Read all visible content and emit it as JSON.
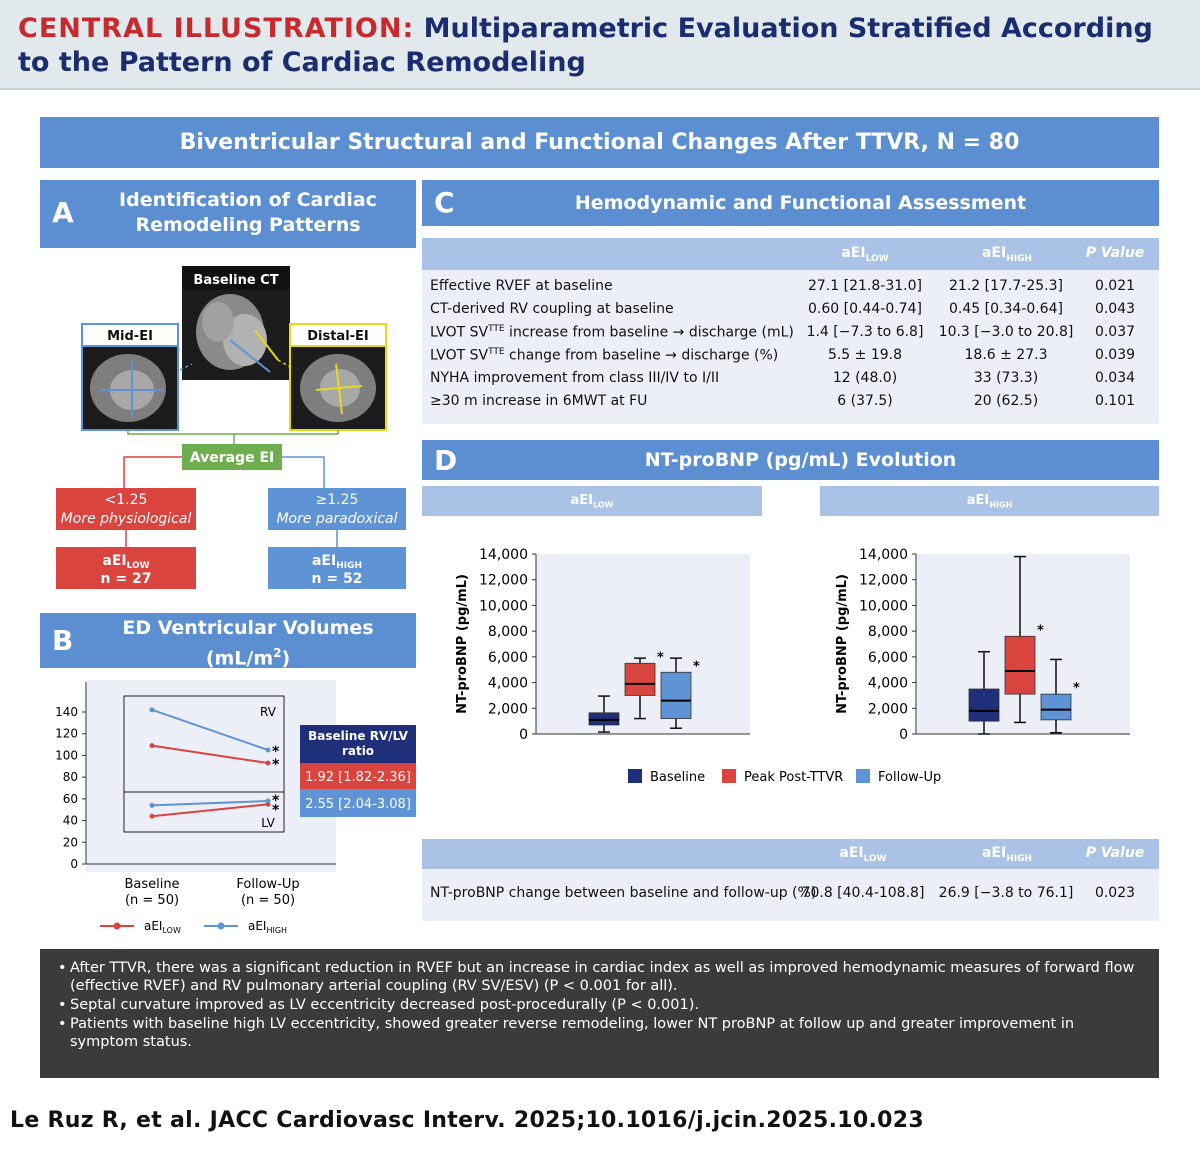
{
  "header": {
    "label": "CENTRAL ILLUSTRATION:",
    "title": "Multiparametric Evaluation Stratified According to the Pattern of Cardiac Remodeling"
  },
  "main_banner": "Biventricular Structural and Functional Changes After TTVR, N = 80",
  "panel_a": {
    "letter": "A",
    "title_line1": "Identification of Cardiac",
    "title_line2": "Remodeling Patterns",
    "ct_labels": {
      "baseline": "Baseline CT",
      "mid": "Mid-EI",
      "distal": "Distal-EI"
    },
    "average": "Average EI",
    "low_box": {
      "cut": "<1.25",
      "desc": "More physiological"
    },
    "high_box": {
      "cut": "≥1.25",
      "desc": "More paradoxical"
    },
    "low_group": {
      "name": "aEI",
      "sub": "LOW",
      "n": "n = 27"
    },
    "high_group": {
      "name": "aEI",
      "sub": "HIGH",
      "n": "n = 52"
    }
  },
  "panel_b": {
    "letter": "B",
    "title_line1": "ED Ventricular Volumes",
    "title_line2": "(mL/m",
    "title_sup": "2",
    "title_end": ")",
    "ratio_header_line1": "Baseline RV/LV",
    "ratio_header_line2": "ratio",
    "ratio_low": "1.92 [1.82-2.36]",
    "ratio_high": "2.55 [2.04-3.08]",
    "legend_low": {
      "name": "aEI",
      "sub": "LOW"
    },
    "legend_high": {
      "name": "aEI",
      "sub": "HIGH"
    }
  },
  "panel_c": {
    "letter": "C",
    "title": "Hemodynamic and Functional Assessment",
    "col_low": {
      "name": "aEI",
      "sub": "LOW"
    },
    "col_high": {
      "name": "aEI",
      "sub": "HIGH"
    },
    "col_p": "P Value",
    "rows": [
      {
        "label": "Effective RVEF at baseline",
        "low": "27.1 [21.8-31.0]",
        "high": "21.2 [17.7-25.3]",
        "p": "0.021"
      },
      {
        "label": "CT-derived RV coupling at baseline",
        "low": "0.60 [0.44-0.74]",
        "high": "0.45 [0.34-0.64]",
        "p": "0.043"
      },
      {
        "label_a": "LVOT SV",
        "label_sup": "TTE",
        "label_b": " increase from baseline → discharge (mL)",
        "low": "1.4 [−7.3 to 6.8]",
        "high": "10.3 [−3.0 to 20.8]",
        "p": "0.037"
      },
      {
        "label_a": "LVOT SV",
        "label_sup": "TTE",
        "label_b": " change from baseline → discharge (%)",
        "low": "5.5 ± 19.8",
        "high": "18.6 ± 27.3",
        "p": "0.039"
      },
      {
        "label": "NYHA improvement from class III/IV to I/II",
        "low": "12 (48.0)",
        "high": "33 (73.3)",
        "p": "0.034"
      },
      {
        "label": "≥30 m increase in 6MWT at FU",
        "low": "6 (37.5)",
        "high": "20 (62.5)",
        "p": "0.101"
      }
    ]
  },
  "panel_d": {
    "letter": "D",
    "title": "NT-proBNP (pg/mL) Evolution",
    "group_low": {
      "name": "aEI",
      "sub": "LOW"
    },
    "group_high": {
      "name": "aEI",
      "sub": "HIGH"
    },
    "legend": [
      "Baseline",
      "Peak Post-TTVR",
      "Follow-Up"
    ],
    "table": {
      "col_low": {
        "name": "aEI",
        "sub": "LOW"
      },
      "col_high": {
        "name": "aEI",
        "sub": "HIGH"
      },
      "col_p": "P Value",
      "row": {
        "label": "NT-proBNP change between baseline and follow-up (%)",
        "low": "70.8 [40.4-108.8]",
        "high": "26.9 [−3.8 to 76.1]",
        "p": "0.023"
      }
    }
  },
  "chart_data": [
    {
      "type": "line",
      "title": "",
      "xlabel": "",
      "ylabel": "",
      "categories": [
        "Baseline\n(n = 50)",
        "Follow-Up\n(n = 50)"
      ],
      "ylim": [
        0,
        140
      ],
      "yticks": [
        0,
        20,
        40,
        60,
        80,
        100,
        120,
        140
      ],
      "annotations": [
        "RV",
        "LV",
        "*"
      ],
      "series": [
        {
          "name": "aEI LOW",
          "group": "RV",
          "color": "#d9443f",
          "values": [
            109,
            93
          ]
        },
        {
          "name": "aEI HIGH",
          "group": "RV",
          "color": "#5e93d5",
          "values": [
            142,
            105
          ]
        },
        {
          "name": "aEI LOW",
          "group": "LV",
          "color": "#d9443f",
          "values": [
            44,
            55
          ]
        },
        {
          "name": "aEI HIGH",
          "group": "LV",
          "color": "#5e93d5",
          "values": [
            54,
            58
          ]
        }
      ]
    },
    {
      "type": "box",
      "title": "aEI LOW",
      "ylabel": "NT-proBNP (pg/mL)",
      "ylim": [
        0,
        14000
      ],
      "yticks": [
        "0",
        "2,000",
        "4,000",
        "6,000",
        "8,000",
        "10,000",
        "12,000",
        "14,000"
      ],
      "series": [
        {
          "name": "Baseline",
          "color": "#1f2f7a",
          "min": 150,
          "q1": 700,
          "median": 1100,
          "q3": 1650,
          "max": 2950,
          "star": false
        },
        {
          "name": "Peak Post-TTVR",
          "color": "#d9443f",
          "min": 1200,
          "q1": 3000,
          "median": 3900,
          "q3": 5500,
          "max": 5900,
          "star": true
        },
        {
          "name": "Follow-Up",
          "color": "#5e93d5",
          "min": 450,
          "q1": 1200,
          "median": 2600,
          "q3": 4800,
          "max": 5900,
          "star": true
        }
      ]
    },
    {
      "type": "box",
      "title": "aEI HIGH",
      "ylabel": "NT-proBNP (pg/mL)",
      "ylim": [
        0,
        14000
      ],
      "yticks": [
        "0",
        "2,000",
        "4,000",
        "6,000",
        "8,000",
        "10,000",
        "12,000",
        "14,000"
      ],
      "series": [
        {
          "name": "Baseline",
          "color": "#1f2f7a",
          "min": 0,
          "q1": 1000,
          "median": 1800,
          "q3": 3500,
          "max": 6400,
          "star": false
        },
        {
          "name": "Peak Post-TTVR",
          "color": "#d9443f",
          "min": 900,
          "q1": 3100,
          "median": 4900,
          "q3": 7600,
          "max": 13800,
          "star": true
        },
        {
          "name": "Follow-Up",
          "color": "#5e93d5",
          "min": 100,
          "q1": 1100,
          "median": 1900,
          "q3": 3100,
          "max": 5800,
          "star": true
        }
      ]
    }
  ],
  "summary": [
    "After TTVR, there was a significant reduction in RVEF but an increase in cardiac index as well as improved hemodynamic measures of forward flow (effective RVEF) and RV pulmonary arterial coupling (RV SV/ESV) (P < 0.001 for all).",
    "Septal curvature improved as LV eccentricity decreased post-procedurally (P < 0.001).",
    "Patients with baseline high LV eccentricity, showed greater reverse remodeling, lower NT proBNP at follow up and greater improvement in symptom status."
  ],
  "citation": "Le Ruz R, et al. JACC Cardiovasc Interv. 2025;10.1016/j.jcin.2025.10.023",
  "colors": {
    "banner_blue": "#5b8fd1",
    "header_navy": "#1a2d6e",
    "header_red": "#c62a2f",
    "low_red": "#d9443f",
    "high_blue": "#5e93d5",
    "baseline_navy": "#1f2f7a",
    "green": "#6fae4f"
  }
}
